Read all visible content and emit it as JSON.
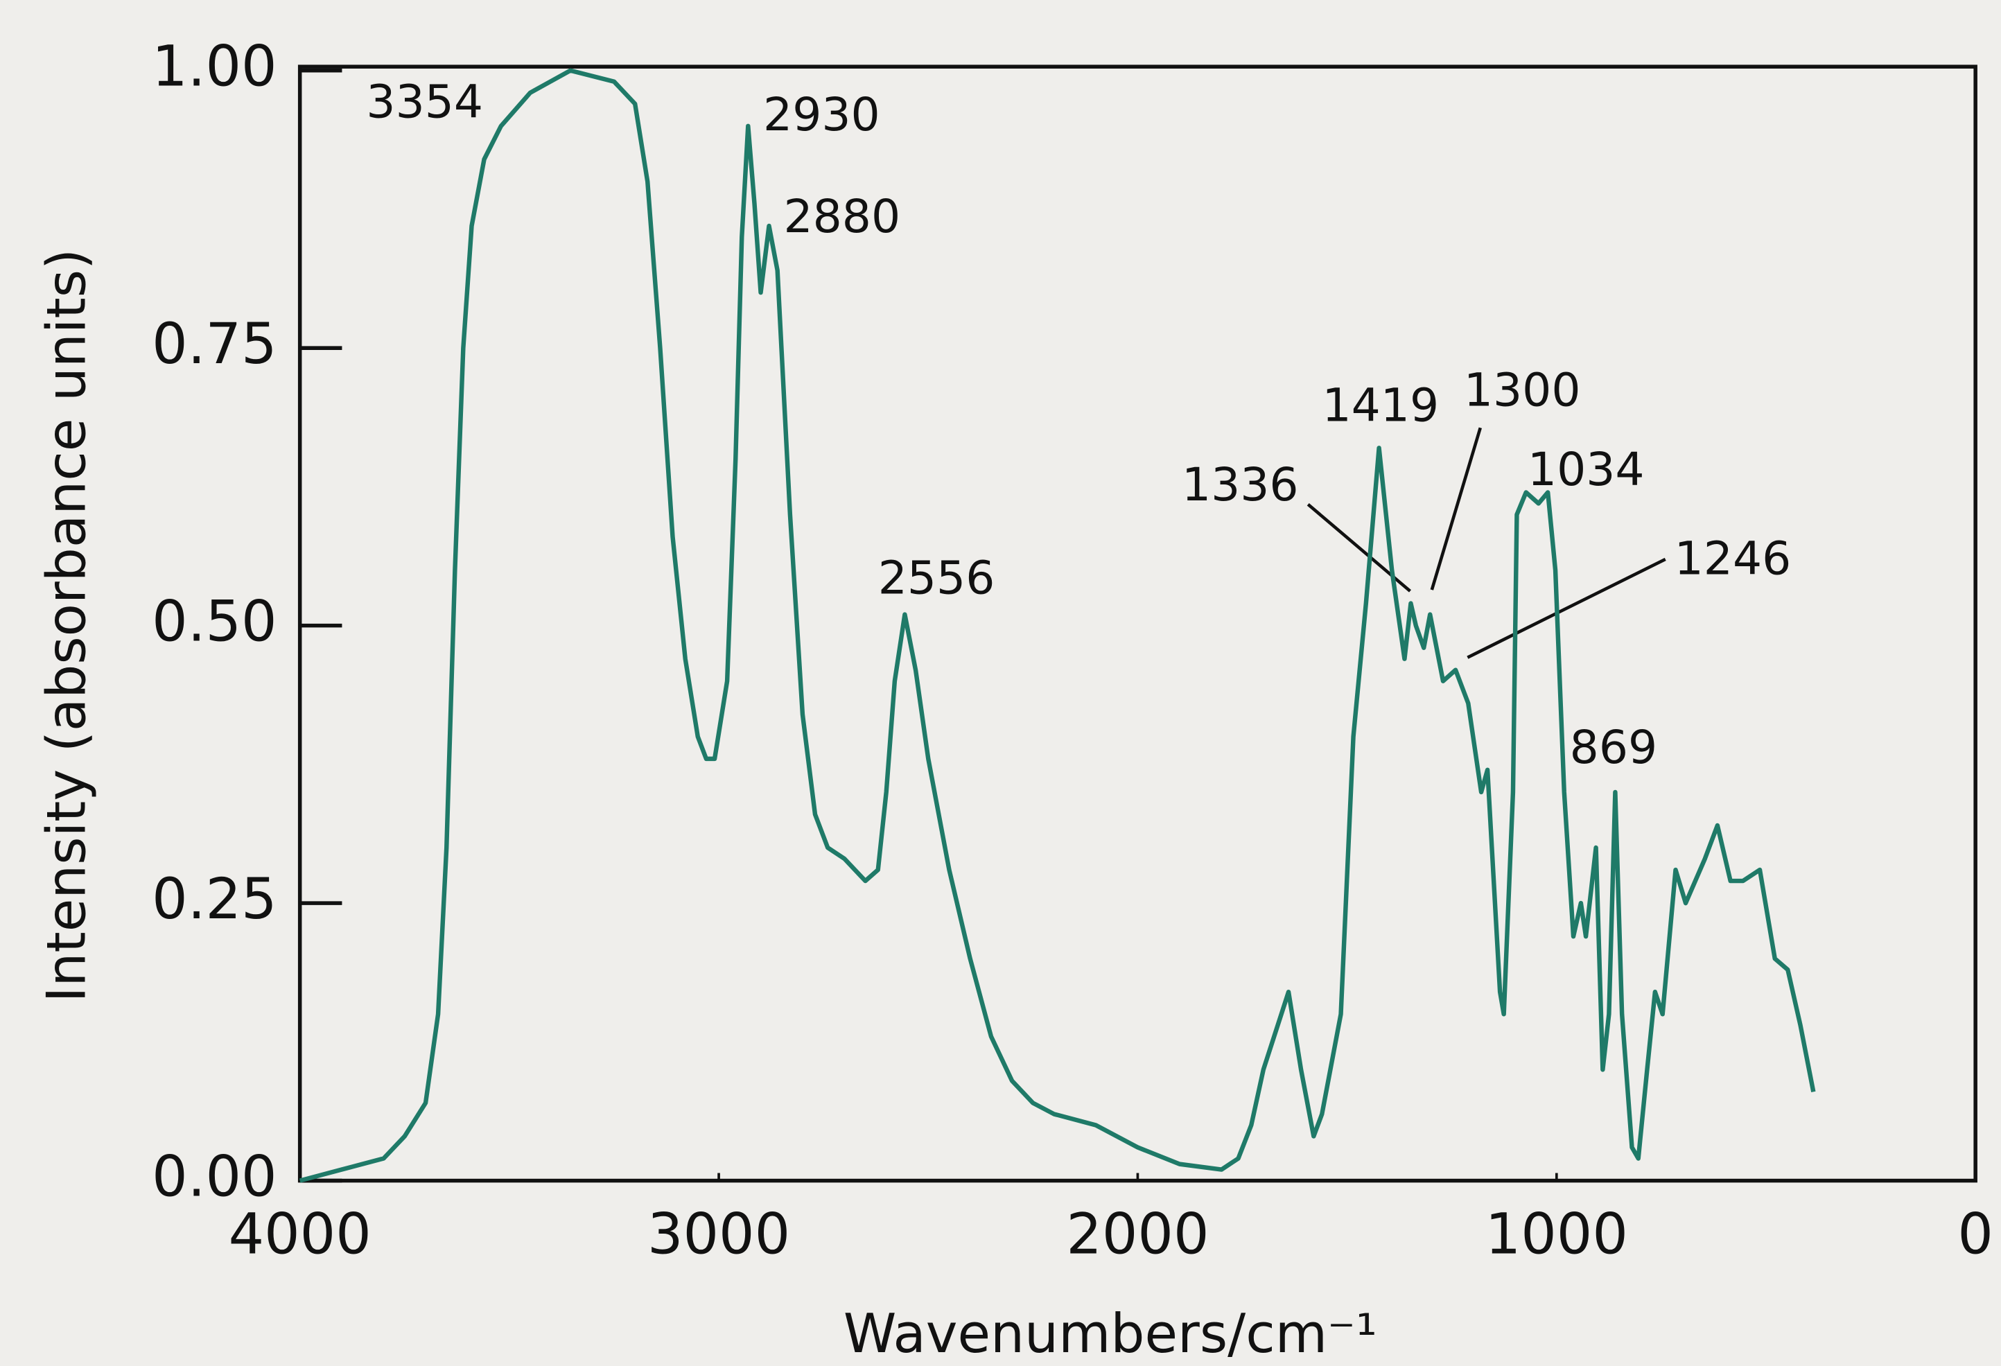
{
  "chart_data": {
    "type": "line",
    "xlabel": "Wavenumbers/cm⁻¹",
    "ylabel": "Intensity (absorbance units)",
    "color": "#1f7a68",
    "xlim": [
      4000,
      0
    ],
    "xticks": [
      4000,
      3000,
      2000,
      1000,
      0
    ],
    "ylim": [
      0,
      1
    ],
    "yticks": [
      {
        "value": 0,
        "label": "0.00"
      },
      {
        "value": 0.25,
        "label": "0.25"
      },
      {
        "value": 0.5,
        "label": "0.50"
      },
      {
        "value": 0.75,
        "label": "0.75"
      },
      {
        "value": 1,
        "label": "1.00"
      }
    ],
    "annotations": [
      "3354",
      "2930",
      "2880",
      "2556",
      "1419",
      "1300",
      "1336",
      "1034",
      "1246",
      "869"
    ],
    "x": [
      4000,
      3900,
      3800,
      3750,
      3700,
      3670,
      3650,
      3630,
      3610,
      3590,
      3560,
      3520,
      3450,
      3354,
      3250,
      3200,
      3170,
      3140,
      3110,
      3080,
      3050,
      3030,
      3010,
      2980,
      2960,
      2945,
      2930,
      2915,
      2900,
      2880,
      2860,
      2830,
      2800,
      2770,
      2740,
      2700,
      2650,
      2620,
      2600,
      2580,
      2556,
      2530,
      2500,
      2450,
      2400,
      2350,
      2300,
      2250,
      2200,
      2100,
      2000,
      1900,
      1800,
      1760,
      1729,
      1700,
      1640,
      1610,
      1580,
      1560,
      1515,
      1485,
      1455,
      1424,
      1393,
      1363,
      1348,
      1336,
      1317,
      1302,
      1271,
      1241,
      1211,
      1180,
      1165,
      1135,
      1126,
      1104,
      1095,
      1073,
      1043,
      1021,
      1003,
      982,
      960,
      942,
      930,
      906,
      890,
      875,
      860,
      844,
      820,
      805,
      784,
      765,
      747,
      716,
      692,
      646,
      616,
      585,
      555,
      515,
      479,
      448,
      418,
      387
    ],
    "values": [
      0.0,
      0.01,
      0.02,
      0.04,
      0.07,
      0.15,
      0.3,
      0.55,
      0.75,
      0.86,
      0.92,
      0.95,
      0.98,
      1.0,
      0.99,
      0.97,
      0.9,
      0.75,
      0.58,
      0.47,
      0.4,
      0.38,
      0.38,
      0.45,
      0.65,
      0.85,
      0.95,
      0.88,
      0.8,
      0.86,
      0.82,
      0.6,
      0.42,
      0.33,
      0.3,
      0.29,
      0.27,
      0.28,
      0.35,
      0.45,
      0.51,
      0.46,
      0.38,
      0.28,
      0.2,
      0.13,
      0.09,
      0.07,
      0.06,
      0.05,
      0.03,
      0.015,
      0.01,
      0.02,
      0.05,
      0.1,
      0.17,
      0.1,
      0.04,
      0.06,
      0.15,
      0.4,
      0.52,
      0.66,
      0.55,
      0.47,
      0.52,
      0.5,
      0.48,
      0.51,
      0.45,
      0.46,
      0.43,
      0.35,
      0.37,
      0.17,
      0.15,
      0.35,
      0.6,
      0.62,
      0.61,
      0.62,
      0.55,
      0.35,
      0.22,
      0.25,
      0.22,
      0.3,
      0.1,
      0.15,
      0.35,
      0.15,
      0.03,
      0.02,
      0.1,
      0.17,
      0.15,
      0.28,
      0.25,
      0.29,
      0.32,
      0.27,
      0.27,
      0.28,
      0.2,
      0.19,
      0.14,
      0.08
    ]
  }
}
